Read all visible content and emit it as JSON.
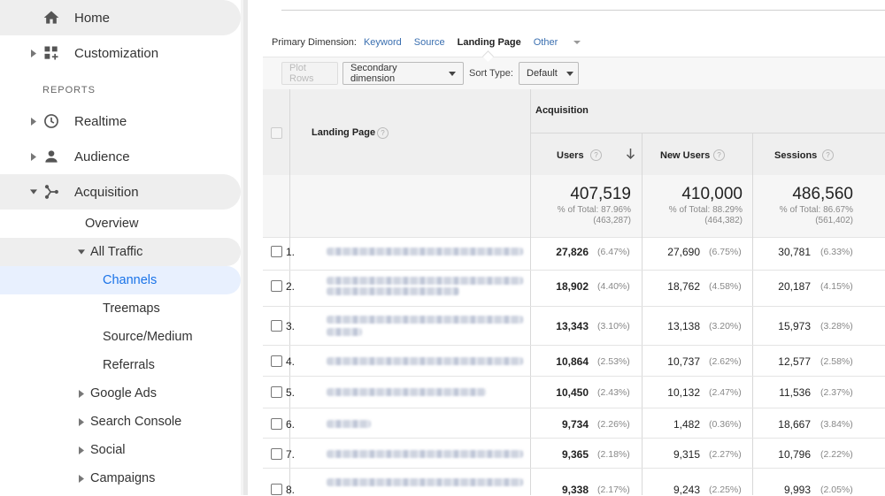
{
  "sidebar": {
    "home": "Home",
    "customization": "Customization",
    "reports_heading": "REPORTS",
    "realtime": "Realtime",
    "audience": "Audience",
    "acquisition": "Acquisition",
    "overview": "Overview",
    "all_traffic": "All Traffic",
    "channels": "Channels",
    "treemaps": "Treemaps",
    "source_medium": "Source/Medium",
    "referrals": "Referrals",
    "google_ads": "Google Ads",
    "search_console": "Search Console",
    "social": "Social",
    "campaigns": "Campaigns"
  },
  "dimensions": {
    "label": "Primary Dimension:",
    "keyword": "Keyword",
    "source": "Source",
    "landing_page": "Landing Page",
    "other": "Other"
  },
  "toolbar": {
    "plot_rows": "Plot Rows",
    "secondary_dimension": "Secondary dimension",
    "sort_type_label": "Sort Type:",
    "sort_type_value": "Default"
  },
  "table": {
    "group_header": "Acquisition",
    "col_landing_page": "Landing Page",
    "col_users": "Users",
    "col_new_users": "New Users",
    "col_sessions": "Sessions",
    "totals": {
      "users": "407,519",
      "users_pct": "% of Total: 87.96%",
      "users_abs": "(463,287)",
      "new_users": "410,000",
      "new_users_pct": "% of Total: 88.29%",
      "new_users_abs": "(464,382)",
      "sessions": "486,560",
      "sessions_pct": "% of Total: 86.67%",
      "sessions_abs": "(561,402)"
    },
    "rows": [
      {
        "num": "1.",
        "users": "27,826",
        "users_pct": "(6.47%)",
        "new_users": "27,690",
        "new_users_pct": "(6.75%)",
        "sessions": "30,781",
        "sessions_pct": "(6.33%)"
      },
      {
        "num": "2.",
        "users": "18,902",
        "users_pct": "(4.40%)",
        "new_users": "18,762",
        "new_users_pct": "(4.58%)",
        "sessions": "20,187",
        "sessions_pct": "(4.15%)"
      },
      {
        "num": "3.",
        "users": "13,343",
        "users_pct": "(3.10%)",
        "new_users": "13,138",
        "new_users_pct": "(3.20%)",
        "sessions": "15,973",
        "sessions_pct": "(3.28%)"
      },
      {
        "num": "4.",
        "users": "10,864",
        "users_pct": "(2.53%)",
        "new_users": "10,737",
        "new_users_pct": "(2.62%)",
        "sessions": "12,577",
        "sessions_pct": "(2.58%)"
      },
      {
        "num": "5.",
        "users": "10,450",
        "users_pct": "(2.43%)",
        "new_users": "10,132",
        "new_users_pct": "(2.47%)",
        "sessions": "11,536",
        "sessions_pct": "(2.37%)"
      },
      {
        "num": "6.",
        "users": "9,734",
        "users_pct": "(2.26%)",
        "new_users": "1,482",
        "new_users_pct": "(0.36%)",
        "sessions": "18,667",
        "sessions_pct": "(3.84%)"
      },
      {
        "num": "7.",
        "users": "9,365",
        "users_pct": "(2.18%)",
        "new_users": "9,315",
        "new_users_pct": "(2.27%)",
        "sessions": "10,796",
        "sessions_pct": "(2.22%)"
      },
      {
        "num": "8.",
        "users": "9,338",
        "users_pct": "(2.17%)",
        "new_users": "9,243",
        "new_users_pct": "(2.25%)",
        "sessions": "9,993",
        "sessions_pct": "(2.05%)"
      }
    ]
  },
  "colors": {
    "accent": "#1a73e8",
    "selected_bg": "#e8f0fe",
    "pill_bg": "#eeeeee",
    "link": "#3a6fb0"
  }
}
